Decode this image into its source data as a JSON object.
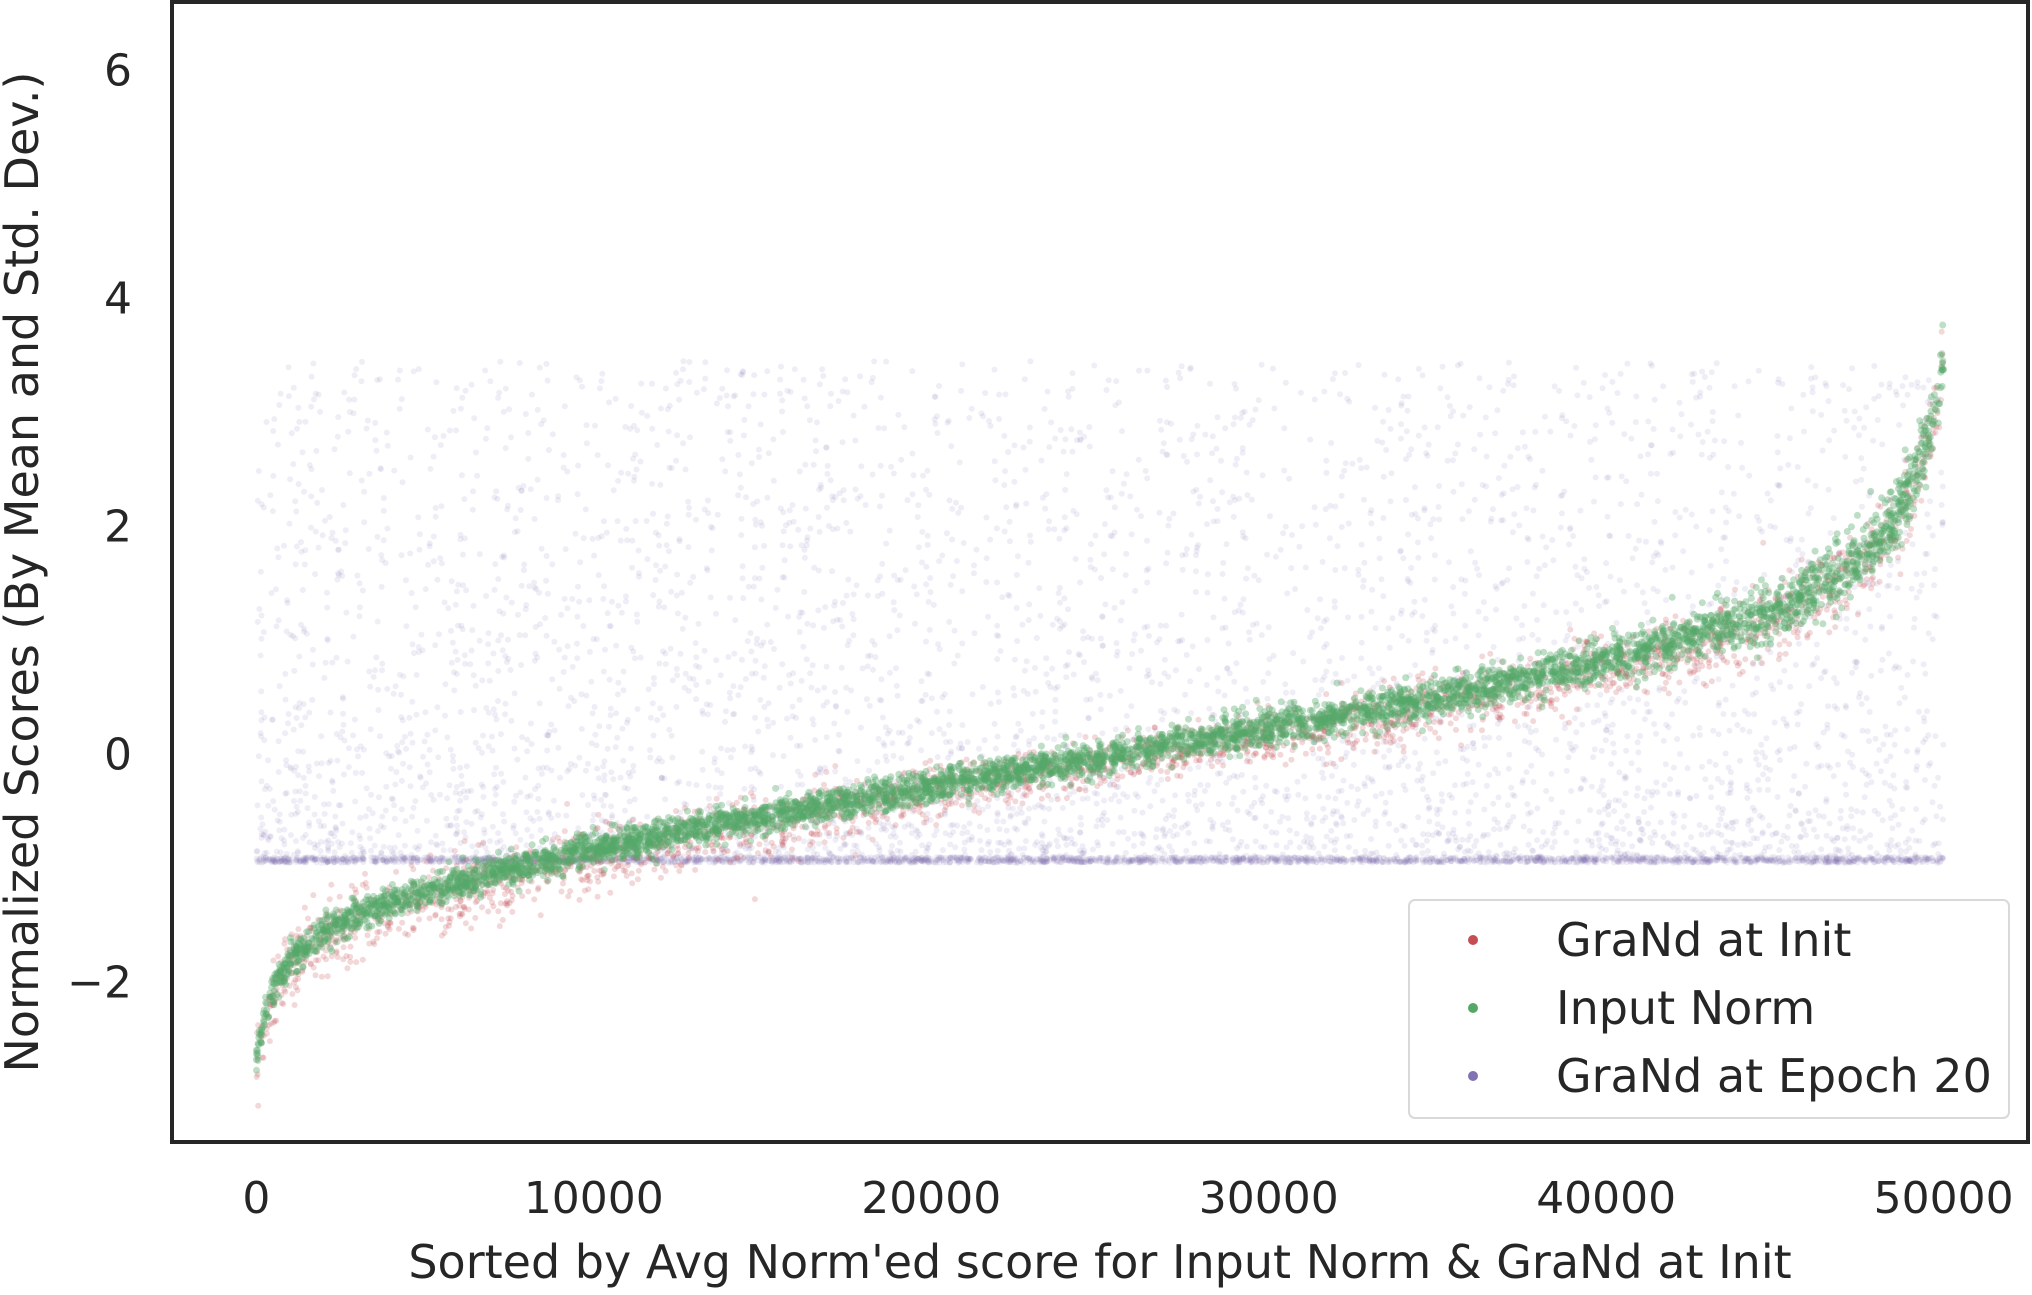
{
  "chart_data": {
    "type": "scatter",
    "title": "",
    "xlabel": "Sorted by Avg Norm'ed score for Input Norm & GraNd at Init",
    "ylabel": "Normalized Scores (By Mean and Std. Dev.)",
    "xlim": [
      -2500,
      52500
    ],
    "ylim": [
      -3.4,
      6.6
    ],
    "xticks": [
      0,
      10000,
      20000,
      30000,
      40000,
      50000
    ],
    "xtick_labels": [
      "0",
      "10000",
      "20000",
      "30000",
      "40000",
      "50000"
    ],
    "yticks": [
      -2,
      0,
      2,
      4,
      6
    ],
    "ytick_labels": [
      "−2",
      "0",
      "2",
      "4",
      "6"
    ],
    "grid": false,
    "legend_position": "lower-right",
    "series": [
      {
        "name": "GraNd at Init",
        "color": "#c44e52",
        "description_of_shape": "sorted curve with wider spread",
        "x": [
          0,
          500,
          1000,
          2000,
          3000,
          5000,
          7500,
          10000,
          12500,
          15000,
          17500,
          20000,
          22500,
          25000,
          27500,
          30000,
          32500,
          35000,
          37500,
          40000,
          42500,
          44000,
          45500,
          46500,
          47500,
          48500,
          49200,
          49700,
          50000
        ],
        "y": [
          -2.7,
          -2.1,
          -1.85,
          -1.6,
          -1.45,
          -1.25,
          -1.05,
          -0.88,
          -0.72,
          -0.58,
          -0.44,
          -0.3,
          -0.17,
          -0.05,
          0.07,
          0.2,
          0.33,
          0.47,
          0.62,
          0.78,
          0.98,
          1.12,
          1.3,
          1.45,
          1.68,
          1.98,
          2.4,
          3.0,
          3.5
        ]
      },
      {
        "name": "Input Norm",
        "color": "#55a868",
        "x": [
          0,
          500,
          1000,
          2000,
          3000,
          5000,
          7500,
          10000,
          12500,
          15000,
          17500,
          20000,
          22500,
          25000,
          27500,
          30000,
          32500,
          35000,
          37500,
          40000,
          42500,
          44000,
          45500,
          46500,
          47500,
          48500,
          49200,
          49700,
          50000
        ],
        "y": [
          -2.6,
          -2.05,
          -1.8,
          -1.55,
          -1.4,
          -1.2,
          -1.0,
          -0.83,
          -0.68,
          -0.55,
          -0.42,
          -0.28,
          -0.15,
          -0.03,
          0.1,
          0.23,
          0.36,
          0.5,
          0.65,
          0.82,
          1.02,
          1.16,
          1.34,
          1.5,
          1.72,
          2.02,
          2.45,
          3.0,
          3.45
        ]
      },
      {
        "name": "GraNd at Epoch 20",
        "color": "#8172b3",
        "floor": -0.95,
        "spread_max": 4.4,
        "x_range": [
          0,
          50000
        ]
      }
    ]
  }
}
